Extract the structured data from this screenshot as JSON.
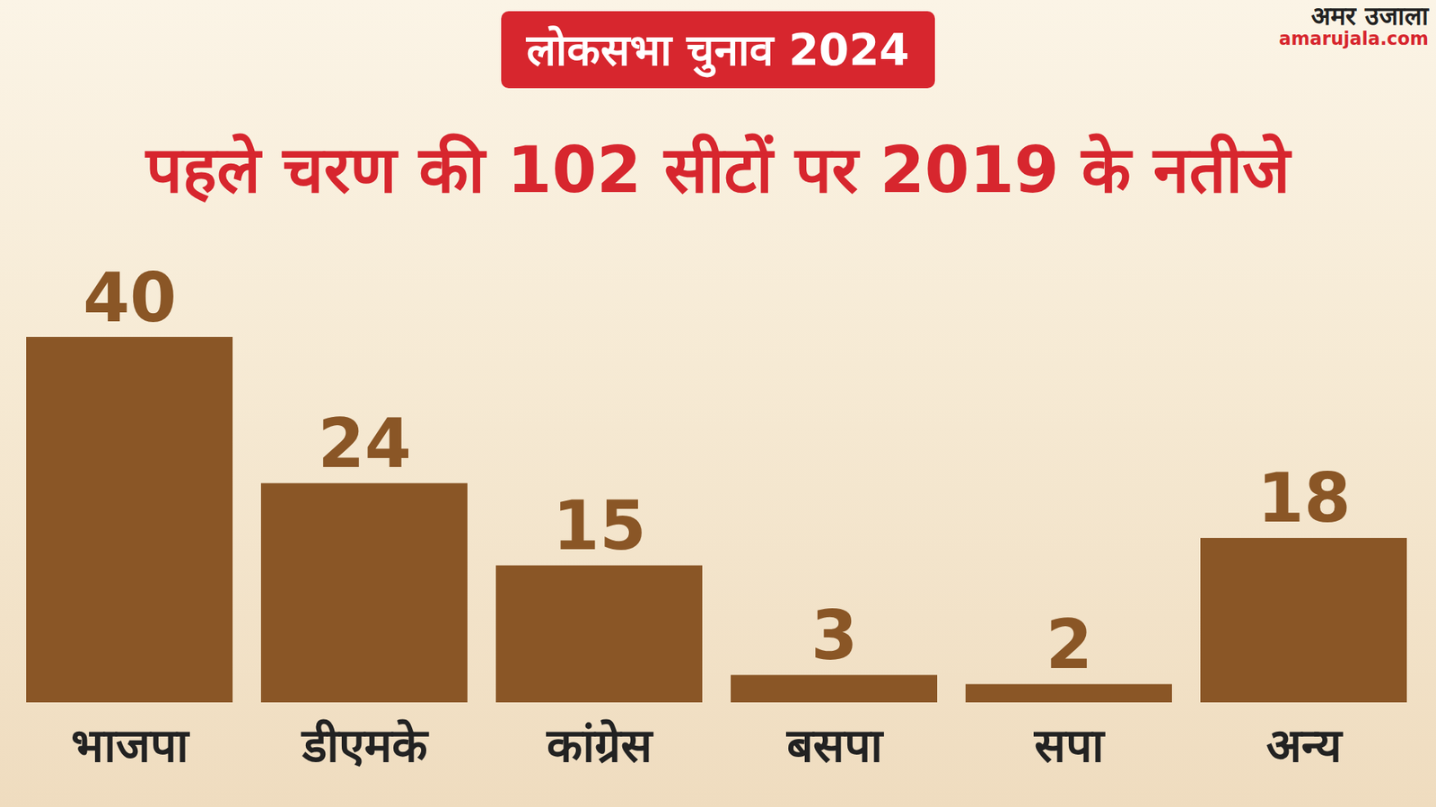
{
  "chart_data": {
    "type": "bar",
    "subtitle": "लोकसभा चुनाव 2024",
    "title": "पहले चरण की 102 सीटों पर 2019 के नतीजे",
    "source": "अमर उजाला",
    "source_url": "amarujala.com",
    "categories": [
      "भाजपा",
      "डीएमके",
      "कांग्रेस",
      "बसपा",
      "सपा",
      "अन्य"
    ],
    "values": [
      40,
      24,
      15,
      3,
      2,
      18
    ],
    "color": "#8a5626",
    "ylim": [
      0,
      40
    ],
    "data_labels": true,
    "tick_labels": "x",
    "grid": false
  }
}
